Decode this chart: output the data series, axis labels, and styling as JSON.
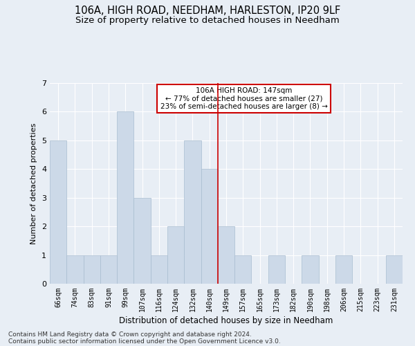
{
  "title": "106A, HIGH ROAD, NEEDHAM, HARLESTON, IP20 9LF",
  "subtitle": "Size of property relative to detached houses in Needham",
  "xlabel": "Distribution of detached houses by size in Needham",
  "ylabel": "Number of detached properties",
  "categories": [
    "66sqm",
    "74sqm",
    "83sqm",
    "91sqm",
    "99sqm",
    "107sqm",
    "116sqm",
    "124sqm",
    "132sqm",
    "140sqm",
    "149sqm",
    "157sqm",
    "165sqm",
    "173sqm",
    "182sqm",
    "190sqm",
    "198sqm",
    "206sqm",
    "215sqm",
    "223sqm",
    "231sqm"
  ],
  "values": [
    5,
    1,
    1,
    1,
    6,
    3,
    1,
    2,
    5,
    4,
    2,
    1,
    0,
    1,
    0,
    1,
    0,
    1,
    0,
    0,
    1
  ],
  "bar_color": "#ccd9e8",
  "bar_edgecolor": "#a8bdd0",
  "vline_color": "#cc0000",
  "ylim": [
    0,
    7
  ],
  "yticks": [
    0,
    1,
    2,
    3,
    4,
    5,
    6,
    7
  ],
  "annotation_text": "106A HIGH ROAD: 147sqm\n← 77% of detached houses are smaller (27)\n23% of semi-detached houses are larger (8) →",
  "annotation_box_color": "#ffffff",
  "annotation_box_edgecolor": "#cc0000",
  "footer_line1": "Contains HM Land Registry data © Crown copyright and database right 2024.",
  "footer_line2": "Contains public sector information licensed under the Open Government Licence v3.0.",
  "background_color": "#e8eef5",
  "title_fontsize": 10.5,
  "subtitle_fontsize": 9.5,
  "xlabel_fontsize": 8.5,
  "ylabel_fontsize": 8,
  "tick_fontsize": 7,
  "annotation_fontsize": 7.5,
  "footer_fontsize": 6.5
}
